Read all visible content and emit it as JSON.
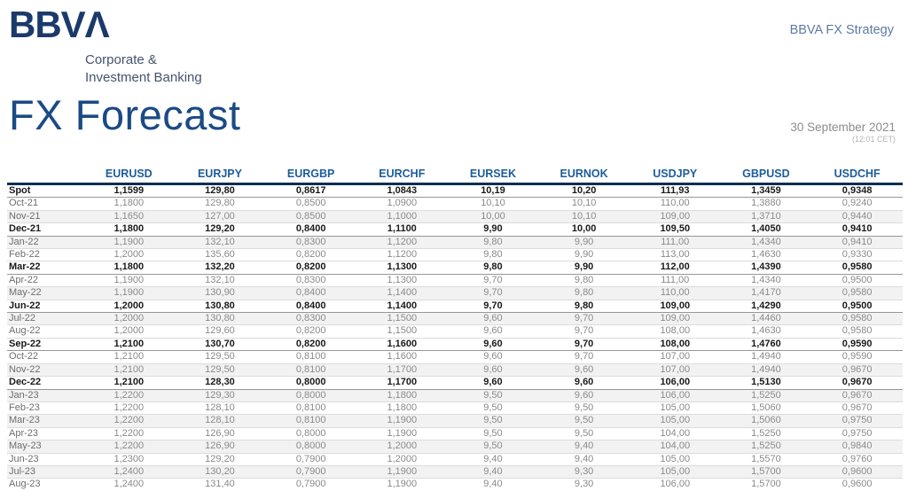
{
  "brand": {
    "logo_text": "BBVΛ",
    "subtitle_line1": "Corporate &",
    "subtitle_line2": "Investment Banking",
    "strategy_label": "BBVA FX Strategy"
  },
  "header": {
    "title": "FX Forecast",
    "date": "30 September 2021",
    "time": "(12:01 CET)"
  },
  "colors": {
    "brand_navy": "#1b3a6b",
    "title_navy": "#1b4a85",
    "column_header_blue": "#1c5c9c",
    "header_rule_navy": "#0e2e54"
  },
  "table": {
    "columns": [
      "EURUSD",
      "EURJPY",
      "EURGBP",
      "EURCHF",
      "EURSEK",
      "EURNOK",
      "USDJPY",
      "GBPUSD",
      "USDCHF"
    ],
    "rows": [
      {
        "label": "Spot",
        "bold": true,
        "values": [
          "1,1599",
          "129,80",
          "0,8617",
          "1,0843",
          "10,19",
          "10,20",
          "111,93",
          "1,3459",
          "0,9348"
        ]
      },
      {
        "label": "Oct-21",
        "bold": false,
        "values": [
          "1,1800",
          "129,80",
          "0,8500",
          "1,0900",
          "10,10",
          "10,10",
          "110,00",
          "1,3880",
          "0,9240"
        ]
      },
      {
        "label": "Nov-21",
        "bold": false,
        "values": [
          "1,1650",
          "127,00",
          "0,8500",
          "1,1000",
          "10,00",
          "10,10",
          "109,00",
          "1,3710",
          "0,9440"
        ]
      },
      {
        "label": "Dec-21",
        "bold": true,
        "values": [
          "1,1800",
          "129,20",
          "0,8400",
          "1,1100",
          "9,90",
          "10,00",
          "109,50",
          "1,4050",
          "0,9410"
        ]
      },
      {
        "label": "Jan-22",
        "bold": false,
        "values": [
          "1,1900",
          "132,10",
          "0,8300",
          "1,1200",
          "9,80",
          "9,90",
          "111,00",
          "1,4340",
          "0,9410"
        ]
      },
      {
        "label": "Feb-22",
        "bold": false,
        "values": [
          "1,2000",
          "135,60",
          "0,8200",
          "1,1200",
          "9,80",
          "9,90",
          "113,00",
          "1,4630",
          "0,9330"
        ]
      },
      {
        "label": "Mar-22",
        "bold": true,
        "values": [
          "1,1800",
          "132,20",
          "0,8200",
          "1,1300",
          "9,80",
          "9,90",
          "112,00",
          "1,4390",
          "0,9580"
        ]
      },
      {
        "label": "Apr-22",
        "bold": false,
        "values": [
          "1,1900",
          "132,10",
          "0,8300",
          "1,1300",
          "9,70",
          "9,80",
          "111,00",
          "1,4340",
          "0,9500"
        ]
      },
      {
        "label": "May-22",
        "bold": false,
        "values": [
          "1,1900",
          "130,90",
          "0,8400",
          "1,1400",
          "9,70",
          "9,80",
          "110,00",
          "1,4170",
          "0,9580"
        ]
      },
      {
        "label": "Jun-22",
        "bold": true,
        "values": [
          "1,2000",
          "130,80",
          "0,8400",
          "1,1400",
          "9,70",
          "9,80",
          "109,00",
          "1,4290",
          "0,9500"
        ]
      },
      {
        "label": "Jul-22",
        "bold": false,
        "values": [
          "1,2000",
          "130,80",
          "0,8300",
          "1,1500",
          "9,60",
          "9,70",
          "109,00",
          "1,4460",
          "0,9580"
        ]
      },
      {
        "label": "Aug-22",
        "bold": false,
        "values": [
          "1,2000",
          "129,60",
          "0,8200",
          "1,1500",
          "9,60",
          "9,70",
          "108,00",
          "1,4630",
          "0,9580"
        ]
      },
      {
        "label": "Sep-22",
        "bold": true,
        "values": [
          "1,2100",
          "130,70",
          "0,8200",
          "1,1600",
          "9,60",
          "9,70",
          "108,00",
          "1,4760",
          "0,9590"
        ]
      },
      {
        "label": "Oct-22",
        "bold": false,
        "values": [
          "1,2100",
          "129,50",
          "0,8100",
          "1,1600",
          "9,60",
          "9,70",
          "107,00",
          "1,4940",
          "0,9590"
        ]
      },
      {
        "label": "Nov-22",
        "bold": false,
        "values": [
          "1,2100",
          "129,50",
          "0,8100",
          "1,1700",
          "9,60",
          "9,60",
          "107,00",
          "1,4940",
          "0,9670"
        ]
      },
      {
        "label": "Dec-22",
        "bold": true,
        "values": [
          "1,2100",
          "128,30",
          "0,8000",
          "1,1700",
          "9,60",
          "9,60",
          "106,00",
          "1,5130",
          "0,9670"
        ]
      },
      {
        "label": "Jan-23",
        "bold": false,
        "values": [
          "1,2200",
          "129,30",
          "0,8000",
          "1,1800",
          "9,50",
          "9,60",
          "106,00",
          "1,5250",
          "0,9670"
        ]
      },
      {
        "label": "Feb-23",
        "bold": false,
        "values": [
          "1,2200",
          "128,10",
          "0,8100",
          "1,1800",
          "9,50",
          "9,50",
          "105,00",
          "1,5060",
          "0,9670"
        ]
      },
      {
        "label": "Mar-23",
        "bold": false,
        "values": [
          "1,2200",
          "128,10",
          "0,8100",
          "1,1900",
          "9,50",
          "9,50",
          "105,00",
          "1,5060",
          "0,9750"
        ]
      },
      {
        "label": "Apr-23",
        "bold": false,
        "values": [
          "1,2200",
          "126,90",
          "0,8000",
          "1,1900",
          "9,50",
          "9,50",
          "104,00",
          "1,5250",
          "0,9750"
        ]
      },
      {
        "label": "May-23",
        "bold": false,
        "values": [
          "1,2200",
          "126,90",
          "0,8000",
          "1,2000",
          "9,50",
          "9,40",
          "104,00",
          "1,5250",
          "0,9840"
        ]
      },
      {
        "label": "Jun-23",
        "bold": false,
        "values": [
          "1,2300",
          "129,20",
          "0,7900",
          "1,2000",
          "9,40",
          "9,40",
          "105,00",
          "1,5570",
          "0,9760"
        ]
      },
      {
        "label": "Jul-23",
        "bold": false,
        "values": [
          "1,2400",
          "130,20",
          "0,7900",
          "1,1900",
          "9,40",
          "9,30",
          "105,00",
          "1,5700",
          "0,9600"
        ]
      },
      {
        "label": "Aug-23",
        "bold": false,
        "values": [
          "1,2400",
          "131,40",
          "0,7900",
          "1,1900",
          "9,40",
          "9,30",
          "106,00",
          "1,5700",
          "0,9600"
        ]
      }
    ]
  }
}
